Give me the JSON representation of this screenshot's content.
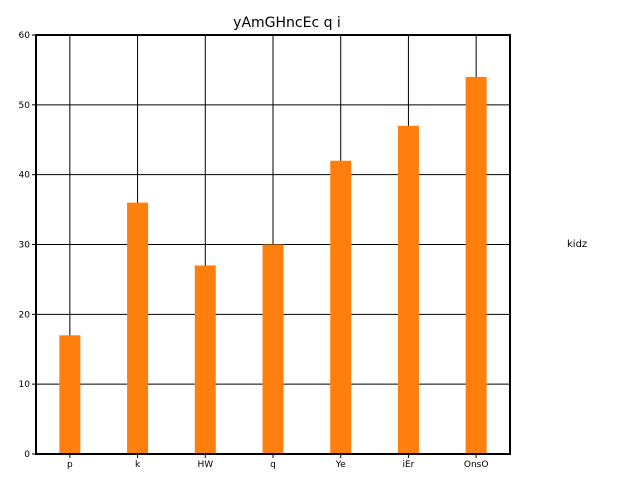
{
  "chart_data": {
    "type": "bar",
    "title": "yAmGHncEc q i",
    "xlabel": "",
    "ylabel": "",
    "categories": [
      "p",
      "k",
      "HW",
      "q",
      "Ye",
      "iEr",
      "OnsO"
    ],
    "series": [
      {
        "name": "kidz",
        "values": [
          17,
          36,
          27,
          30,
          42,
          47,
          54
        ],
        "color": "#ff7f0e"
      }
    ],
    "ylim": [
      0,
      60
    ],
    "yticks": [
      0,
      10,
      20,
      30,
      40,
      50,
      60
    ],
    "grid": true,
    "legend_position": "right"
  }
}
